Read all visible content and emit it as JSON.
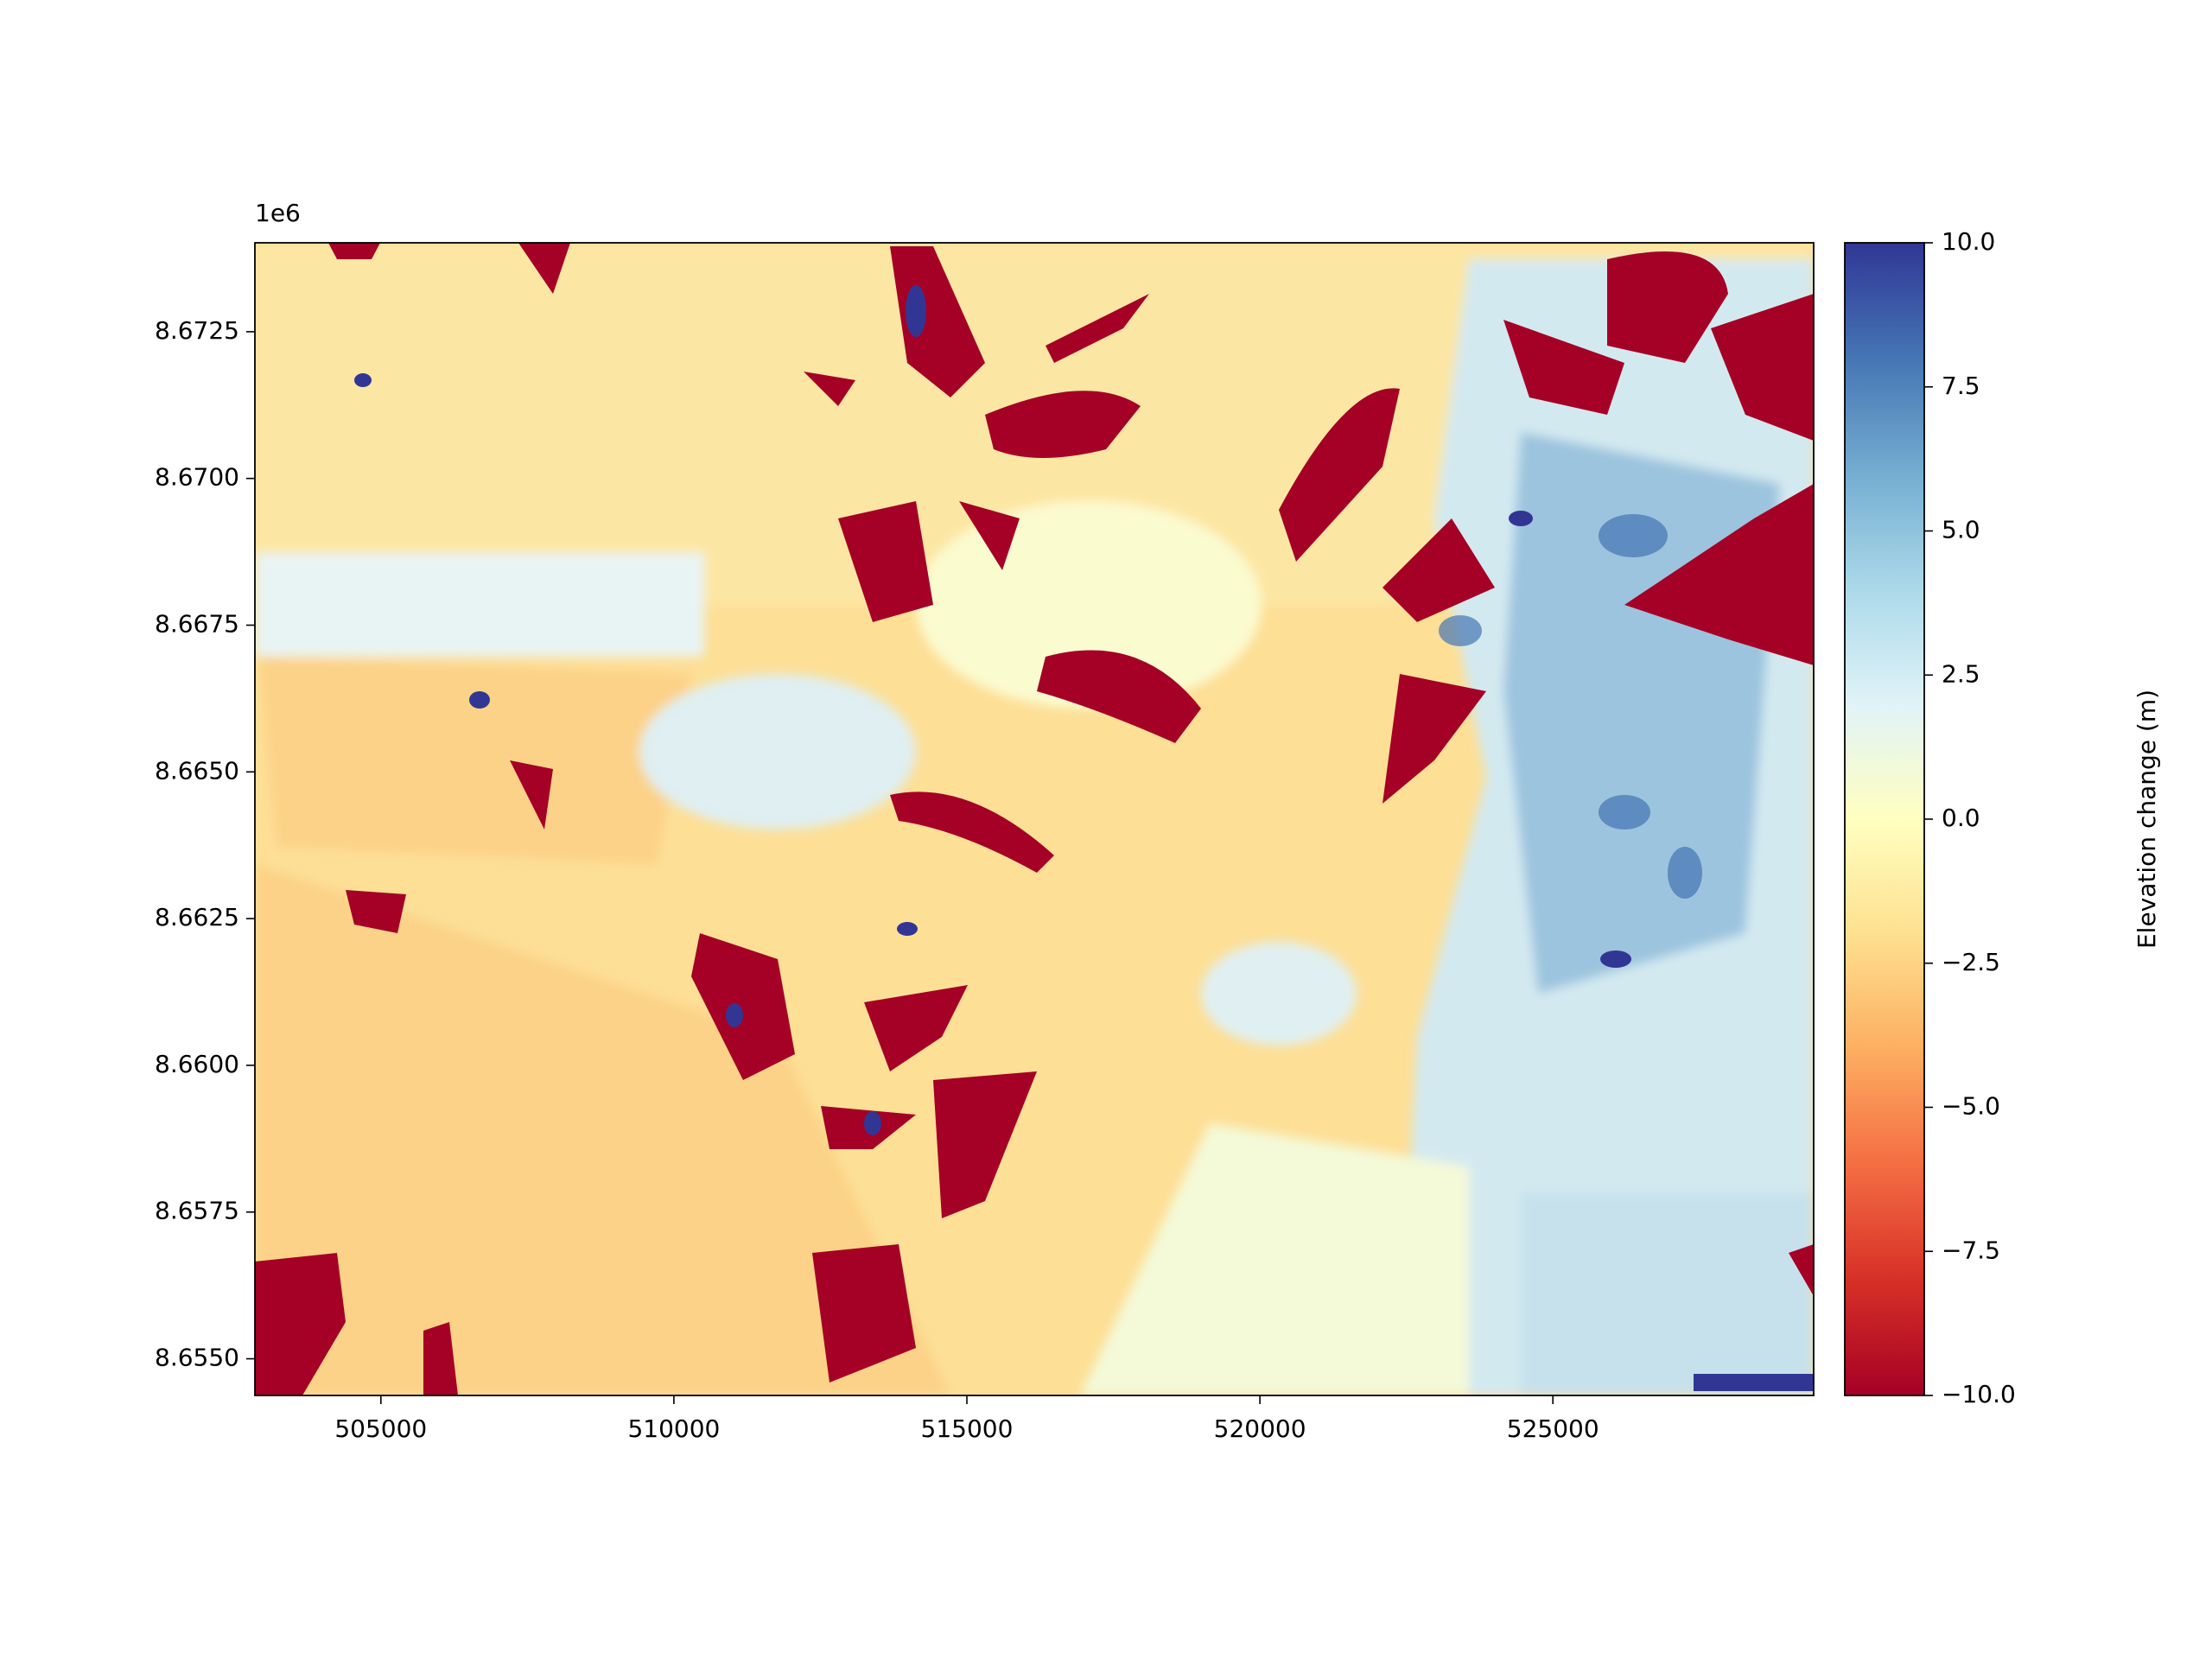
{
  "chart_data": {
    "type": "raster",
    "offset_text": "1e6",
    "xlim": [
      502850,
      529450
    ],
    "ylim": [
      8654375,
      8674015
    ],
    "xticks": [
      505000,
      510000,
      515000,
      520000,
      525000
    ],
    "yticks": [
      {
        "value": 8655000,
        "label": "8.6550"
      },
      {
        "value": 8657500,
        "label": "8.6575"
      },
      {
        "value": 8660000,
        "label": "8.6600"
      },
      {
        "value": 8662500,
        "label": "8.6625"
      },
      {
        "value": 8665000,
        "label": "8.6650"
      },
      {
        "value": 8667500,
        "label": "8.6675"
      },
      {
        "value": 8670000,
        "label": "8.6700"
      },
      {
        "value": 8672500,
        "label": "8.6725"
      }
    ],
    "colormap": "RdYlBu",
    "clim": [
      -10,
      10
    ],
    "colorbar_label": "Elevation change (m)",
    "colorbar_ticks": [
      {
        "value": -10,
        "label": "−10.0"
      },
      {
        "value": -7.5,
        "label": "−7.5"
      },
      {
        "value": -5,
        "label": "−5.0"
      },
      {
        "value": -2.5,
        "label": "−2.5"
      },
      {
        "value": 0,
        "label": "0.0"
      },
      {
        "value": 2.5,
        "label": "2.5"
      },
      {
        "value": 5,
        "label": "5.0"
      },
      {
        "value": 7.5,
        "label": "7.5"
      },
      {
        "value": 10,
        "label": "10.0"
      }
    ]
  }
}
